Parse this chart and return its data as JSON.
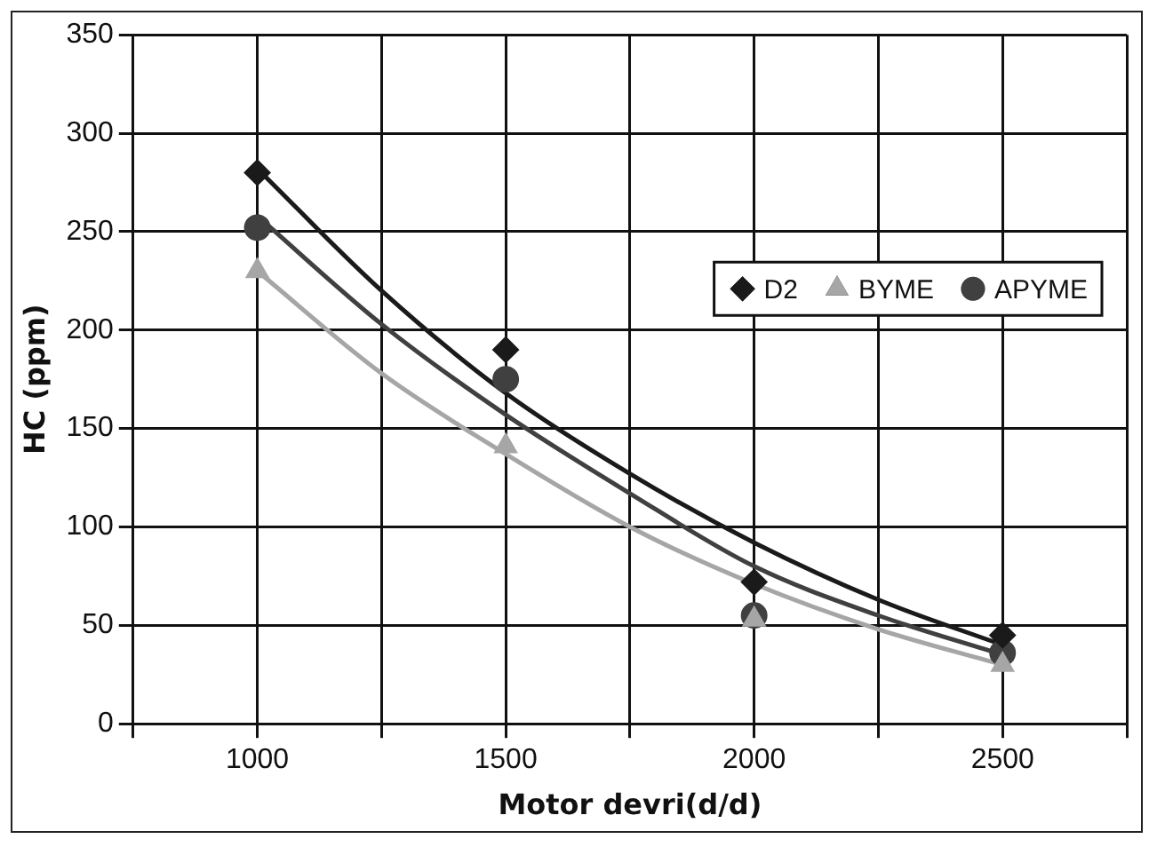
{
  "chart_data": {
    "type": "scatter",
    "xlabel": "Motor devri(d/d)",
    "ylabel": "HC (ppm)",
    "xlim": [
      750,
      2750
    ],
    "xticks": [
      {
        "value": 750,
        "label": null
      },
      1000,
      {
        "value": 1250,
        "label": null
      },
      1500,
      {
        "value": 1750,
        "label": null
      },
      2000,
      {
        "value": 2250,
        "label": null
      },
      2500,
      {
        "value": 2750,
        "label": null
      }
    ],
    "ylim": [
      0,
      350
    ],
    "yticks": [
      0,
      50,
      100,
      150,
      200,
      250,
      300,
      350
    ],
    "grid": true,
    "legend": "top right",
    "series": [
      {
        "name": "D2",
        "marker": "diamond",
        "color": "#1a1a1a",
        "x": [
          1000,
          1500,
          2000,
          2500
        ],
        "values": [
          280,
          190,
          72,
          45
        ]
      },
      {
        "name": "BYME",
        "marker": "triangle",
        "color": "#a6a6a6",
        "x": [
          1000,
          1500,
          2000,
          2500
        ],
        "values": [
          230,
          141,
          53,
          30
        ]
      },
      {
        "name": "APYME",
        "marker": "circle",
        "color": "#404040",
        "x": [
          1000,
          1500,
          2000,
          2500
        ],
        "values": [
          252,
          175,
          55,
          36
        ]
      },
      {
        "type": "line",
        "marker": "none",
        "color": "#1a1a1a",
        "x": [
          1000,
          1250,
          1500,
          1750,
          2000,
          2250,
          2500
        ],
        "values": [
          282,
          220,
          168,
          127,
          92,
          63,
          40
        ]
      },
      {
        "type": "line",
        "marker": "none",
        "color": "#a6a6a6",
        "x": [
          1000,
          1250,
          1500,
          1750,
          2000,
          2250,
          2500
        ],
        "values": [
          230,
          178,
          137,
          100,
          71,
          48,
          30
        ]
      },
      {
        "type": "line",
        "marker": "none",
        "color": "#404040",
        "x": [
          1000,
          1250,
          1500,
          1750,
          2000,
          2250,
          2500
        ],
        "values": [
          258,
          203,
          157,
          117,
          80,
          55,
          35
        ]
      }
    ]
  }
}
